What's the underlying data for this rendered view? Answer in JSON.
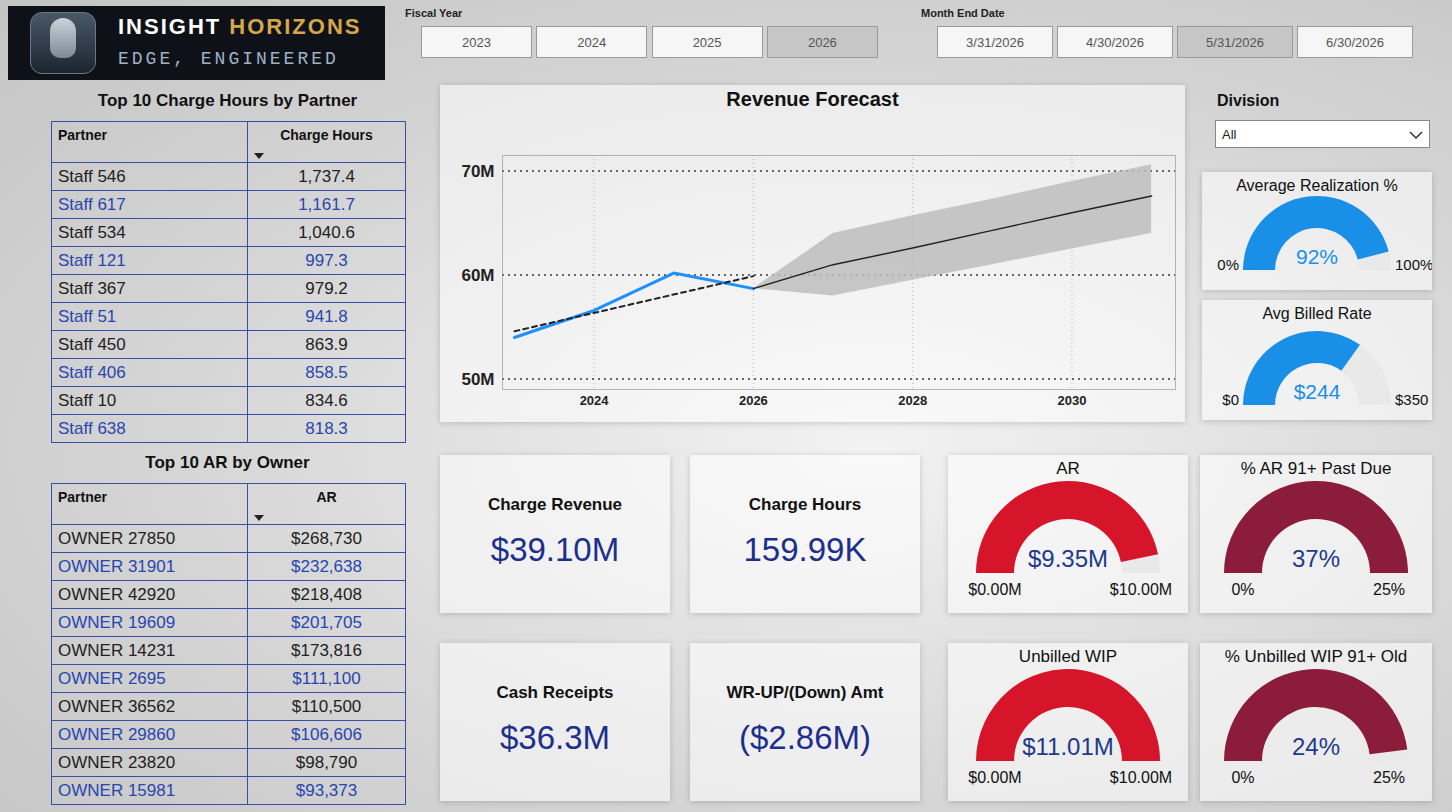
{
  "header": {
    "brand": [
      "INSIGHT",
      "HORIZONS"
    ],
    "tagline": "EDGE, ENGINEERED"
  },
  "filters": {
    "fiscal_year": {
      "label": "Fiscal Year",
      "options": [
        "2023",
        "2024",
        "2025",
        "2026"
      ],
      "selected": "2026"
    },
    "month_end_date": {
      "label": "Month End Date",
      "options": [
        "3/31/2026",
        "4/30/2026",
        "5/31/2026",
        "6/30/2026"
      ],
      "selected": "5/31/2026"
    },
    "division": {
      "label": "Division",
      "selected": "All"
    }
  },
  "tables": [
    {
      "title": "Top 10 Charge Hours by Partner",
      "columns": [
        "Partner",
        "Charge Hours"
      ],
      "rows": [
        [
          "Staff 546",
          "1,737.4"
        ],
        [
          "Staff 617",
          "1,161.7"
        ],
        [
          "Staff 534",
          "1,040.6"
        ],
        [
          "Staff 121",
          "997.3"
        ],
        [
          "Staff 367",
          "979.2"
        ],
        [
          "Staff 51",
          "941.8"
        ],
        [
          "Staff 450",
          "863.9"
        ],
        [
          "Staff 406",
          "858.5"
        ],
        [
          "Staff 10",
          "834.6"
        ],
        [
          "Staff 638",
          "818.3"
        ]
      ]
    },
    {
      "title": "Top 10 AR by Owner",
      "columns": [
        "Partner",
        "AR"
      ],
      "rows": [
        [
          "OWNER 27850",
          "$268,730"
        ],
        [
          "OWNER 31901",
          "$232,638"
        ],
        [
          "OWNER 42920",
          "$218,408"
        ],
        [
          "OWNER 19609",
          "$201,705"
        ],
        [
          "OWNER 14231",
          "$173,816"
        ],
        [
          "OWNER 2695",
          "$111,100"
        ],
        [
          "OWNER 36562",
          "$110,500"
        ],
        [
          "OWNER 29860",
          "$106,606"
        ],
        [
          "OWNER 23820",
          "$98,790"
        ],
        [
          "OWNER 15981",
          "$93,373"
        ]
      ]
    }
  ],
  "kpis": [
    {
      "title": "Charge Revenue",
      "value": "$39.10M"
    },
    {
      "title": "Charge Hours",
      "value": "159.99K"
    },
    {
      "title": "Cash Receipts",
      "value": "$36.3M"
    },
    {
      "title": "WR-UP/(Down) Amt",
      "value": "($2.86M)"
    }
  ],
  "gauges": [
    {
      "title": "Average Realization %",
      "value": 92,
      "value_label": "92%",
      "min": {
        "value": 0,
        "label": "0%"
      },
      "max": {
        "value": 100,
        "label": "100%"
      },
      "color": "#1a8fe8"
    },
    {
      "title": "Avg Billed Rate",
      "value": 244,
      "value_label": "$244",
      "min": {
        "value": 0,
        "label": "$0"
      },
      "max": {
        "value": 350,
        "label": "$350"
      },
      "color": "#1a8fe8"
    },
    {
      "title": "AR",
      "value": 9.35,
      "value_label": "$9.35M",
      "min": {
        "value": 0,
        "label": "$0.00M"
      },
      "max": {
        "value": 10,
        "label": "$10.00M"
      },
      "color": "#d6152b"
    },
    {
      "title": "% AR 91+ Past Due",
      "value": 37,
      "value_label": "37%",
      "min": {
        "value": 0,
        "label": "0%"
      },
      "max": {
        "value": 25,
        "label": "25%"
      },
      "color": "#8b1c3c"
    },
    {
      "title": "Unbilled WIP",
      "value": 11.01,
      "value_label": "$11.01M",
      "min": {
        "value": 0,
        "label": "$0.00M"
      },
      "max": {
        "value": 10,
        "label": "$10.00M"
      },
      "color": "#d6152b"
    },
    {
      "title": "% Unbilled WIP 91+ Old",
      "value": 24,
      "value_label": "24%",
      "min": {
        "value": 0,
        "label": "0%"
      },
      "max": {
        "value": 25,
        "label": "25%"
      },
      "color": "#8b1c3c"
    }
  ],
  "chart_data": {
    "type": "line",
    "title": "Revenue Forecast",
    "xlim": [
      2022.85,
      2031.3
    ],
    "xticks": [
      2024,
      2026,
      2028,
      2030
    ],
    "ylim": [
      49,
      71.5
    ],
    "yticks": [
      {
        "value": 50,
        "label": "50M"
      },
      {
        "value": 60,
        "label": "60M"
      },
      {
        "value": 70,
        "label": "70M"
      }
    ],
    "grid": true,
    "series": [
      {
        "type": "area",
        "color": "#bdbdbd",
        "x": [
          2026,
          2027,
          2028,
          2029,
          2030,
          2031
        ],
        "lower": [
          58.7,
          58.0,
          59.5,
          61.0,
          62.5,
          64.0
        ],
        "upper": [
          58.7,
          64.0,
          65.7,
          67.3,
          69.0,
          70.6
        ]
      },
      {
        "type": "line",
        "color": "#1e90ff",
        "line_style": "solid",
        "x": [
          2023,
          2024,
          2025,
          2026
        ],
        "values": [
          54.0,
          56.6,
          60.2,
          58.7
        ]
      },
      {
        "type": "line",
        "color": "#222222",
        "line_style": "dashed",
        "x": [
          2023,
          2026
        ],
        "values": [
          54.6,
          59.9
        ]
      },
      {
        "type": "line",
        "color": "#222222",
        "line_style": "solid",
        "x": [
          2026,
          2027,
          2028,
          2029,
          2030,
          2031
        ],
        "values": [
          58.7,
          61.0,
          62.6,
          64.3,
          66.0,
          67.6
        ]
      }
    ]
  }
}
